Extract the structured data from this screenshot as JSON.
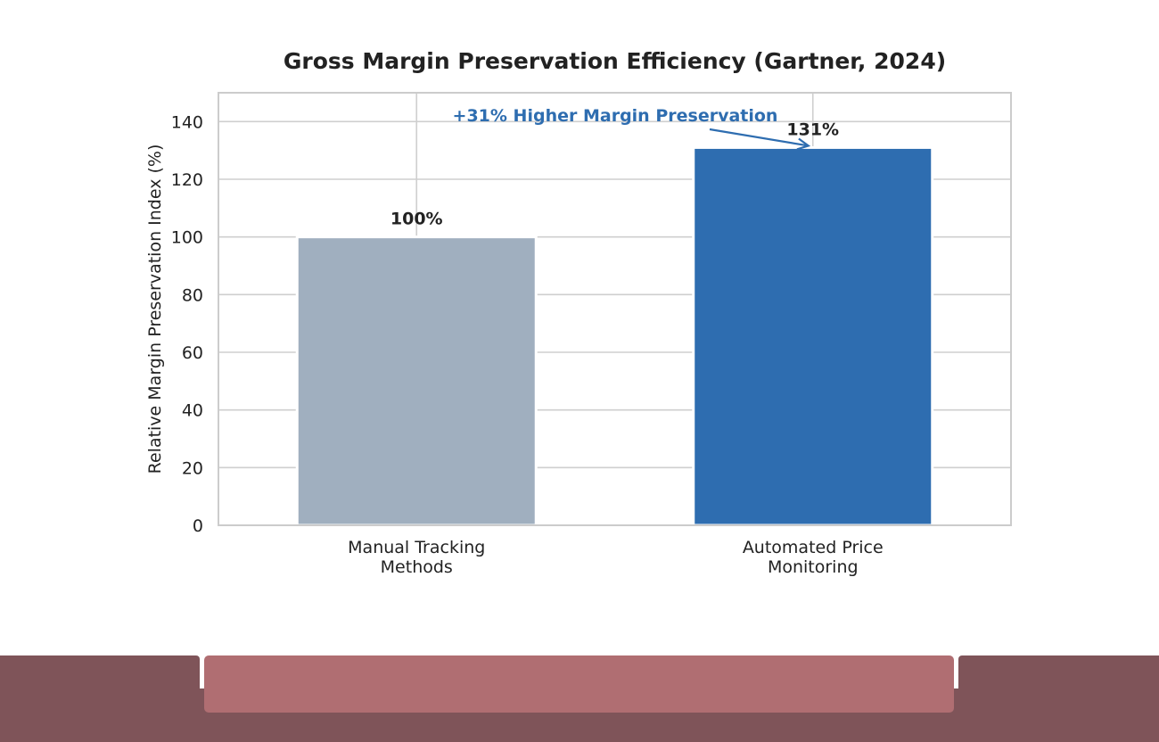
{
  "chart_data": {
    "type": "bar",
    "title": "Gross Margin Preservation Efficiency (Gartner, 2024)",
    "xlabel": "",
    "ylabel": "Relative Margin Preservation Index (%)",
    "categories": [
      [
        "Manual Tracking",
        "Methods"
      ],
      [
        "Automated Price",
        "Monitoring"
      ]
    ],
    "values": [
      100,
      131
    ],
    "value_labels": [
      "100%",
      "131%"
    ],
    "bar_colors": [
      "#a0afbf",
      "#2e6db0"
    ],
    "ylim": [
      0,
      150
    ],
    "yticks": [
      0,
      20,
      40,
      60,
      80,
      100,
      120,
      140
    ],
    "grid": true,
    "annotation": {
      "text": "+31% Higher Margin Preservation",
      "color": "#2e6db0",
      "arrow_to_category": 1
    }
  }
}
